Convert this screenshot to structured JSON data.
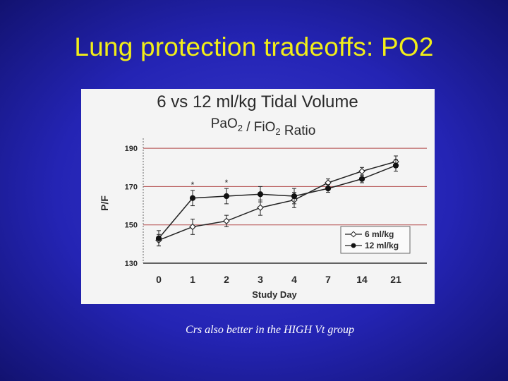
{
  "slide": {
    "title": "Lung protection tradeoffs: PO2",
    "caption": "Crs also better in the HIGH Vt group"
  },
  "colors": {
    "background": "#2424b4",
    "title": "#f2ee18",
    "caption": "#ffffff",
    "chart_panel": "#f4f4f4"
  },
  "chart_data": {
    "type": "line",
    "title": "6 vs 12 ml/kg Tidal Volume",
    "subtitle": "PaO2 / FiO2 Ratio",
    "xlabel": "Study Day",
    "ylabel": "P/F",
    "categories": [
      "0",
      "1",
      "2",
      "3",
      "4",
      "7",
      "14",
      "21"
    ],
    "yticks": [
      130,
      150,
      170,
      190
    ],
    "ylim": [
      130,
      193
    ],
    "grid": "horizontal",
    "legend_position": "bottom-right",
    "significance_marker": "*",
    "significant_days": [
      "1",
      "2"
    ],
    "series": [
      {
        "name": "6 ml/kg",
        "marker": "open-diamond",
        "values": [
          142,
          149,
          152,
          159,
          163,
          172,
          178,
          183
        ],
        "errors": [
          3,
          4,
          3,
          4,
          4,
          2,
          2,
          3
        ]
      },
      {
        "name": "12 ml/kg",
        "marker": "filled-circle",
        "values": [
          143,
          164,
          165,
          166,
          165,
          169,
          174,
          181
        ],
        "errors": [
          4,
          4,
          4,
          4,
          4,
          2,
          2,
          3
        ]
      }
    ]
  }
}
